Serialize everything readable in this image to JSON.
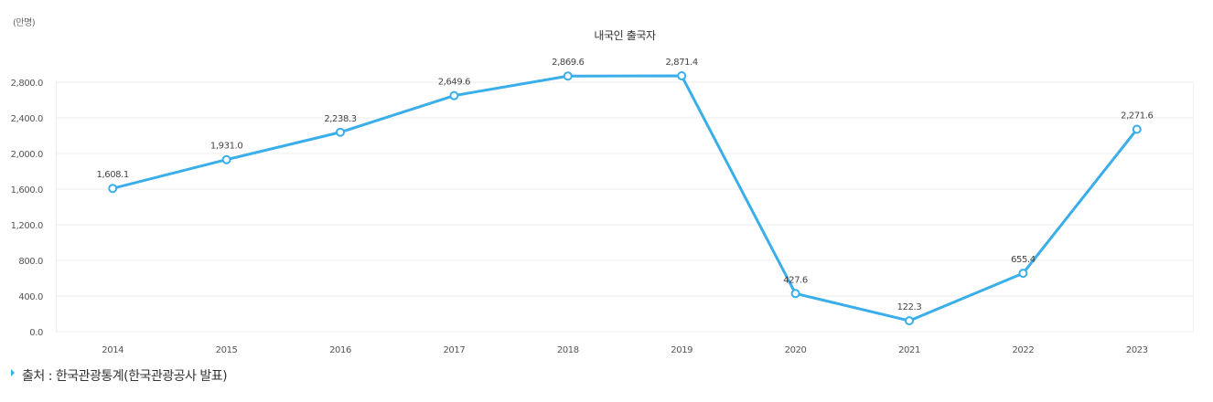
{
  "chart_data": {
    "type": "line",
    "title": "내국인 출국자",
    "unit_label": "(만명)",
    "xlabel": "",
    "ylabel": "",
    "categories": [
      "2014",
      "2015",
      "2016",
      "2017",
      "2018",
      "2019",
      "2020",
      "2021",
      "2022",
      "2023"
    ],
    "series": [
      {
        "values": [
          1608.1,
          1931.0,
          2238.3,
          2649.6,
          2869.6,
          2871.4,
          427.6,
          122.3,
          655.4,
          2271.6
        ],
        "labels": [
          "1,608.1",
          "1,931.0",
          "2,238.3",
          "2,649.6",
          "2,869.6",
          "2,871.4",
          "427.6",
          "122.3",
          "655.4",
          "2,271.6"
        ]
      }
    ],
    "ylim": [
      0,
      2800
    ],
    "yticks": [
      0,
      400,
      800,
      1200,
      1600,
      2000,
      2400,
      2800
    ],
    "ytick_labels": [
      "0.0",
      "400.0",
      "800.0",
      "1,200.0",
      "1,600.0",
      "2,000.0",
      "2,400.0",
      "2,800.0"
    ],
    "grid": true,
    "line_color": "#3aaee8"
  },
  "source": "출처 : 한국관광통계(한국관광공사 발표)"
}
